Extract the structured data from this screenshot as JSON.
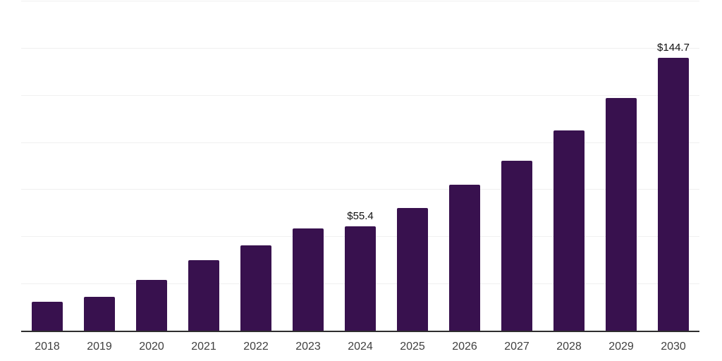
{
  "chart_data": {
    "type": "bar",
    "title": "",
    "xlabel": "",
    "ylabel": "",
    "categories": [
      "2018",
      "2019",
      "2020",
      "2021",
      "2022",
      "2023",
      "2024",
      "2025",
      "2026",
      "2027",
      "2028",
      "2029",
      "2030"
    ],
    "values": [
      15.2,
      17.8,
      26.8,
      37.2,
      45.4,
      54.3,
      55.4,
      65.0,
      77.3,
      90.2,
      106.0,
      123.5,
      144.7
    ],
    "data_labels": {
      "2024": "$55.4",
      "2030": "$144.7"
    },
    "ylim": [
      0,
      175
    ],
    "gridline_step": 25,
    "grid": true,
    "legend": false,
    "y_axis_tick_labels_visible": false,
    "bar_color": "#38114E",
    "axis_line_color": "#2e2e2e",
    "gridline_color": "#f0f0f0",
    "tick_label_color": "#404040",
    "data_label_color": "#111111",
    "background_color": "#ffffff"
  }
}
